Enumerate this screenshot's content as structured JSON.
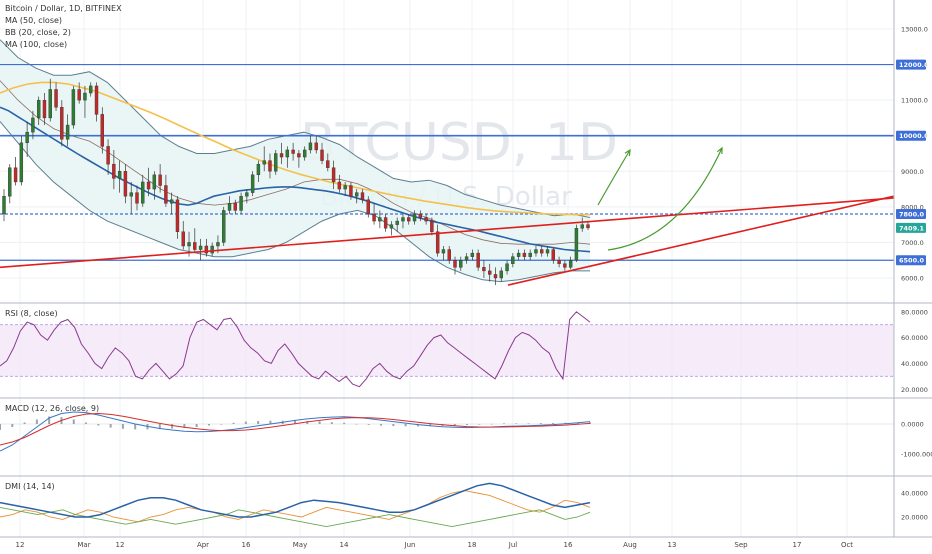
{
  "header": {
    "symbol_title": "Bitcoin / Dollar, 1D, BITFINEX",
    "indicators": [
      "MA (50, close)",
      "BB (20, close, 2)",
      "MA (100, close)"
    ]
  },
  "watermark": {
    "main": "BTCUSD, 1D",
    "sub": "Bitcoin / U.S. Dollar"
  },
  "colors": {
    "ma50": "#2962a8",
    "ma100": "#f5c04a",
    "bb_line": "#5c7f8f",
    "bb_fill": "#e6f4f4",
    "bb_basis": "#8d6e63",
    "candle_up": "#2e7d32",
    "candle_down": "#c62828",
    "hline": "#3d6fd6",
    "trend_red": "#e01e1e",
    "arrow_green": "#4a9a33",
    "rsi_line": "#8a3a8f",
    "rsi_band": "#f2e3f7",
    "macd_line": "#3a76c4",
    "signal_line": "#d32f2f",
    "dmi_adx": "#2962a8",
    "dmi_plus": "#e69138",
    "dmi_minus": "#6aa84f",
    "last_price": "#26a69a"
  },
  "main_panel": {
    "price_axis_ticks": [
      "13000.0",
      "12000.0",
      "11000.0",
      "10000.0",
      "9000.0",
      "8000.0",
      "7000.0",
      "6000.0"
    ],
    "price_tags": [
      {
        "label": "12000.0",
        "kind": "level"
      },
      {
        "label": "10000.0",
        "kind": "level"
      },
      {
        "label": "7800.0",
        "kind": "level"
      },
      {
        "label": "7409.1",
        "kind": "last"
      },
      {
        "label": "6500.0",
        "kind": "level"
      }
    ]
  },
  "rsi_panel": {
    "title": "RSI (8, close)",
    "ticks": [
      "80.0000",
      "60.0000",
      "40.0000",
      "20.0000"
    ]
  },
  "macd_panel": {
    "title": "MACD (12, 26, close, 9)",
    "ticks": [
      "0.0000",
      "-1000.0000"
    ]
  },
  "dmi_panel": {
    "title": "DMI (14, 14)",
    "ticks": [
      "40.0000",
      "20.0000"
    ]
  },
  "time_axis": {
    "labels": [
      "12",
      "Mar",
      "12",
      "Apr",
      "16",
      "May",
      "14",
      "Jun",
      "18",
      "Jul",
      "16",
      "Aug",
      "13",
      "Sep",
      "17",
      "Oct"
    ]
  },
  "chart_data": {
    "type": "line",
    "title": "Bitcoin / Dollar, 1D, BITFINEX",
    "xlabel": "",
    "ylabel": "",
    "ylim": [
      5500,
      13700
    ],
    "grid": true,
    "candles": [
      [
        7800,
        8500,
        7600,
        8300
      ],
      [
        8300,
        9200,
        8100,
        9100
      ],
      [
        9100,
        9400,
        8600,
        8700
      ],
      [
        8700,
        10000,
        8600,
        9800
      ],
      [
        9800,
        10400,
        9400,
        10100
      ],
      [
        10100,
        10700,
        9900,
        10500
      ],
      [
        10500,
        11100,
        10300,
        11000
      ],
      [
        11000,
        11200,
        10300,
        10500
      ],
      [
        10500,
        11600,
        10400,
        11300
      ],
      [
        11300,
        11500,
        10700,
        10800
      ],
      [
        10800,
        11000,
        9700,
        9900
      ],
      [
        9900,
        10600,
        9700,
        10300
      ],
      [
        10300,
        11400,
        10200,
        11300
      ],
      [
        11300,
        11500,
        10900,
        11000
      ],
      [
        11000,
        11400,
        10500,
        11200
      ],
      [
        11200,
        11500,
        11100,
        11400
      ],
      [
        11400,
        11500,
        10400,
        10600
      ],
      [
        10600,
        10800,
        9500,
        9700
      ],
      [
        9700,
        9900,
        8900,
        9200
      ],
      [
        9200,
        9600,
        8500,
        8800
      ],
      [
        8800,
        9300,
        8400,
        9000
      ],
      [
        9000,
        9200,
        8100,
        8300
      ],
      [
        8300,
        8700,
        7800,
        8400
      ],
      [
        8400,
        8600,
        7900,
        8100
      ],
      [
        8100,
        8900,
        8000,
        8700
      ],
      [
        8700,
        9100,
        8300,
        8500
      ],
      [
        8500,
        9000,
        8200,
        8900
      ],
      [
        8900,
        9200,
        8400,
        8600
      ],
      [
        8600,
        8900,
        8000,
        8100
      ],
      [
        8100,
        8400,
        7800,
        8200
      ],
      [
        8200,
        8300,
        7100,
        7300
      ],
      [
        7300,
        7600,
        6800,
        6900
      ],
      [
        6900,
        7300,
        6600,
        7000
      ],
      [
        7000,
        7400,
        6700,
        6800
      ],
      [
        6800,
        7100,
        6500,
        6900
      ],
      [
        6900,
        7100,
        6600,
        6700
      ],
      [
        6700,
        7000,
        6600,
        6900
      ],
      [
        6900,
        7200,
        6700,
        7000
      ],
      [
        7000,
        8000,
        6900,
        7900
      ],
      [
        7900,
        8300,
        7800,
        8100
      ],
      [
        8100,
        8200,
        7800,
        7900
      ],
      [
        7900,
        8400,
        7800,
        8300
      ],
      [
        8300,
        8500,
        8100,
        8400
      ],
      [
        8400,
        9000,
        8300,
        8900
      ],
      [
        8900,
        9300,
        8700,
        9200
      ],
      [
        9200,
        9700,
        9000,
        9300
      ],
      [
        9300,
        9500,
        8800,
        9000
      ],
      [
        9000,
        9600,
        8900,
        9500
      ],
      [
        9500,
        9800,
        9200,
        9400
      ],
      [
        9400,
        9700,
        9100,
        9600
      ],
      [
        9600,
        9800,
        9300,
        9500
      ],
      [
        9500,
        9600,
        9100,
        9400
      ],
      [
        9400,
        9700,
        9300,
        9600
      ],
      [
        9600,
        10000,
        9500,
        9800
      ],
      [
        9800,
        10000,
        9500,
        9600
      ],
      [
        9600,
        9800,
        9200,
        9300
      ],
      [
        9300,
        9500,
        9000,
        9100
      ],
      [
        9100,
        9300,
        8500,
        8700
      ],
      [
        8700,
        8900,
        8400,
        8500
      ],
      [
        8500,
        8700,
        8300,
        8600
      ],
      [
        8600,
        8700,
        8200,
        8300
      ],
      [
        8300,
        8500,
        8100,
        8400
      ],
      [
        8400,
        8500,
        8100,
        8200
      ],
      [
        8200,
        8300,
        7700,
        7800
      ],
      [
        7800,
        8100,
        7500,
        7600
      ],
      [
        7600,
        7900,
        7400,
        7700
      ],
      [
        7700,
        7800,
        7300,
        7400
      ],
      [
        7400,
        7600,
        7200,
        7500
      ],
      [
        7500,
        7700,
        7300,
        7600
      ],
      [
        7600,
        7800,
        7400,
        7700
      ],
      [
        7700,
        7800,
        7500,
        7600
      ],
      [
        7600,
        7900,
        7500,
        7800
      ],
      [
        7800,
        7900,
        7600,
        7700
      ],
      [
        7700,
        7800,
        7500,
        7600
      ],
      [
        7600,
        7700,
        7200,
        7300
      ],
      [
        7300,
        7500,
        6600,
        6700
      ],
      [
        6700,
        6900,
        6500,
        6800
      ],
      [
        6800,
        6900,
        6400,
        6500
      ],
      [
        6500,
        6600,
        6100,
        6300
      ],
      [
        6300,
        6600,
        6200,
        6500
      ],
      [
        6500,
        6700,
        6400,
        6600
      ],
      [
        6600,
        6800,
        6500,
        6700
      ],
      [
        6700,
        6800,
        6200,
        6300
      ],
      [
        6300,
        6500,
        6000,
        6200
      ],
      [
        6200,
        6400,
        5900,
        6100
      ],
      [
        6100,
        6300,
        5800,
        6000
      ],
      [
        6000,
        6300,
        5900,
        6200
      ],
      [
        6200,
        6500,
        6100,
        6400
      ],
      [
        6400,
        6700,
        6300,
        6600
      ],
      [
        6600,
        6800,
        6500,
        6700
      ],
      [
        6700,
        6800,
        6500,
        6600
      ],
      [
        6600,
        6800,
        6500,
        6700
      ],
      [
        6700,
        6900,
        6600,
        6800
      ],
      [
        6800,
        6900,
        6600,
        6700
      ],
      [
        6700,
        6900,
        6600,
        6800
      ],
      [
        6800,
        6850,
        6400,
        6500
      ],
      [
        6500,
        6600,
        6300,
        6400
      ],
      [
        6400,
        6500,
        6200,
        6300
      ],
      [
        6300,
        6600,
        6250,
        6500
      ],
      [
        6500,
        7500,
        6450,
        7400
      ],
      [
        7400,
        7700,
        7300,
        7500
      ],
      [
        7500,
        7600,
        7350,
        7409
      ]
    ],
    "ma50": [
      10800,
      10700,
      10550,
      10400,
      10250,
      10100,
      9950,
      9800,
      9650,
      9500,
      9360,
      9220,
      9080,
      8940,
      8800,
      8680,
      8560,
      8440,
      8330,
      8230,
      8150,
      8080,
      8050,
      8100,
      8200,
      8300,
      8350,
      8400,
      8450,
      8480,
      8500,
      8530,
      8550,
      8560,
      8560,
      8540,
      8510,
      8480,
      8450,
      8410,
      8360,
      8300,
      8230,
      8160,
      8080,
      8000,
      7920,
      7840,
      7760,
      7690,
      7630,
      7570,
      7520,
      7470,
      7420,
      7370,
      7320,
      7260,
      7200,
      7140,
      7080,
      7020,
      6960,
      6920,
      6880,
      6840,
      6800,
      6780,
      6760,
      6740
    ],
    "ma100": [
      11200,
      11350,
      11450,
      11500,
      11500,
      11450,
      11350,
      11250,
      11100,
      10950,
      10800,
      10650,
      10480,
      10300,
      10120,
      9950,
      9780,
      9600,
      9450,
      9300,
      9150,
      9020,
      8900,
      8800,
      8700,
      8620,
      8540,
      8460,
      8380,
      8300,
      8230,
      8160,
      8100,
      8040,
      7980,
      7930,
      7890,
      7860,
      7840,
      7820,
      7800,
      7790,
      7780,
      7780
    ],
    "bb_upper": [
      12700,
      12200,
      11900,
      11700,
      11700,
      11800,
      11500,
      11000,
      10500,
      10000,
      9700,
      9500,
      9500,
      9600,
      9700,
      9900,
      10000,
      10100,
      9950,
      9750,
      9400,
      9100,
      8800,
      8700,
      8750,
      8600,
      8350,
      8200,
      8050,
      7950,
      7850,
      7750,
      7800,
      7700
    ],
    "bb_lower": [
      10400,
      9800,
      9200,
      8700,
      8300,
      7900,
      7600,
      7400,
      7200,
      7000,
      6800,
      6700,
      6600,
      6600,
      6700,
      6800,
      7000,
      7300,
      7600,
      7800,
      7900,
      7750,
      7400,
      7000,
      6600,
      6300,
      6100,
      5950,
      5900,
      5950,
      6050,
      6150,
      6200,
      6200
    ],
    "rsi": [
      38,
      42,
      52,
      65,
      72,
      70,
      62,
      58,
      66,
      72,
      74,
      68,
      55,
      48,
      40,
      36,
      45,
      52,
      48,
      42,
      30,
      28,
      35,
      40,
      34,
      28,
      32,
      38,
      60,
      72,
      74,
      70,
      66,
      74,
      75,
      68,
      58,
      52,
      48,
      42,
      40,
      50,
      55,
      48,
      40,
      35,
      30,
      28,
      34,
      30,
      26,
      30,
      24,
      22,
      28,
      36,
      40,
      34,
      30,
      28,
      34,
      38,
      46,
      54,
      60,
      62,
      56,
      52,
      48,
      44,
      40,
      36,
      32,
      28,
      38,
      50,
      60,
      64,
      62,
      58,
      52,
      48,
      36,
      28,
      74,
      80,
      76,
      72
    ],
    "macd": [
      -900,
      -700,
      -400,
      -100,
      200,
      350,
      400,
      380,
      300,
      200,
      100,
      0,
      -80,
      -150,
      -200,
      -240,
      -260,
      -250,
      -220,
      -180,
      -120,
      -60,
      0,
      60,
      120,
      170,
      210,
      230,
      240,
      220,
      180,
      130,
      80,
      30,
      -20,
      -60,
      -90,
      -110,
      -120,
      -110,
      -100,
      -80,
      -70,
      -60,
      -40,
      -20,
      10,
      40,
      80
    ],
    "macd_signal": [
      -700,
      -600,
      -450,
      -250,
      -50,
      120,
      250,
      330,
      350,
      320,
      260,
      180,
      100,
      20,
      -50,
      -110,
      -160,
      -200,
      -220,
      -220,
      -200,
      -160,
      -110,
      -50,
      10,
      70,
      120,
      170,
      200,
      215,
      210,
      185,
      150,
      105,
      60,
      15,
      -25,
      -60,
      -85,
      -100,
      -105,
      -100,
      -90,
      -80,
      -70,
      -55,
      -35,
      -10,
      20
    ],
    "dmi_adx": [
      32,
      30,
      28,
      26,
      24,
      22,
      20,
      20,
      22,
      26,
      30,
      34,
      36,
      36,
      34,
      30,
      26,
      24,
      22,
      20,
      20,
      22,
      24,
      28,
      32,
      34,
      33,
      32,
      30,
      28,
      26,
      24,
      24,
      26,
      30,
      34,
      38,
      42,
      46,
      48,
      46,
      42,
      38,
      34,
      30,
      28,
      30,
      32
    ],
    "dmi_plus": [
      20,
      22,
      26,
      24,
      20,
      18,
      22,
      26,
      24,
      20,
      18,
      16,
      20,
      22,
      26,
      28,
      26,
      24,
      20,
      18,
      22,
      26,
      24,
      22,
      20,
      24,
      28,
      26,
      24,
      22,
      20,
      18,
      22,
      26,
      30,
      36,
      40,
      42,
      40,
      38,
      34,
      30,
      26,
      24,
      28,
      34,
      32,
      28
    ],
    "dmi_minus": [
      28,
      26,
      24,
      22,
      24,
      26,
      22,
      20,
      18,
      16,
      14,
      16,
      18,
      16,
      14,
      16,
      18,
      20,
      22,
      26,
      24,
      22,
      20,
      18,
      16,
      14,
      12,
      14,
      16,
      18,
      20,
      22,
      20,
      18,
      16,
      14,
      12,
      14,
      16,
      18,
      20,
      22,
      24,
      26,
      22,
      18,
      20,
      24
    ],
    "horizontal_levels": [
      12000,
      10000,
      7800,
      6500
    ],
    "last_price": 7409.1
  }
}
